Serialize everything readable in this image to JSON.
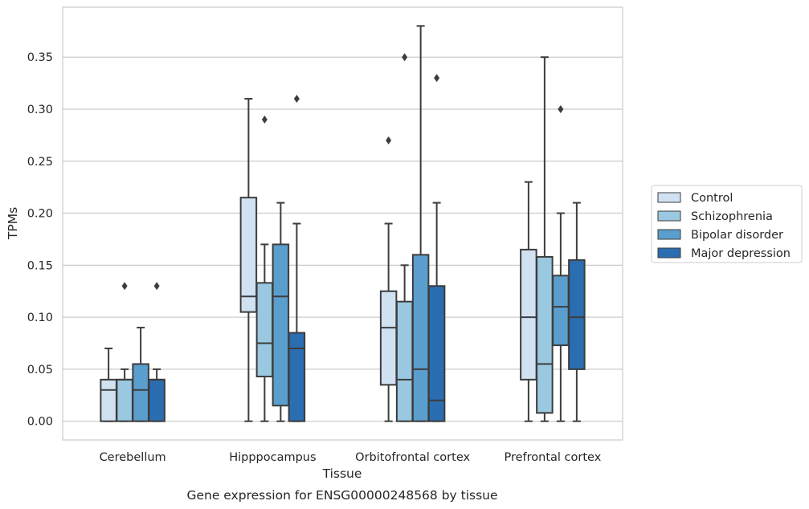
{
  "chart_data": {
    "type": "boxplot",
    "xlabel": "Tissue",
    "ylabel": "TPMs",
    "caption": "Gene expression for ENSG00000248568 by tissue",
    "ylim": [
      -0.018,
      0.398
    ],
    "yticks": [
      "0.00",
      "0.05",
      "0.10",
      "0.15",
      "0.20",
      "0.25",
      "0.30",
      "0.35"
    ],
    "grid": true,
    "legend_position": "right-outside",
    "categories": [
      "Cerebellum",
      "Hipppocampus",
      "Orbitofrontal cortex",
      "Prefrontal cortex"
    ],
    "series": [
      {
        "name": "Control",
        "color": "#d0e1f2",
        "boxes": [
          {
            "whislo": 0.0,
            "q1": 0.0,
            "med": 0.03,
            "q3": 0.04,
            "whishi": 0.07,
            "fliers": []
          },
          {
            "whislo": 0.0,
            "q1": 0.105,
            "med": 0.12,
            "q3": 0.215,
            "whishi": 0.31,
            "fliers": []
          },
          {
            "whislo": 0.0,
            "q1": 0.035,
            "med": 0.09,
            "q3": 0.125,
            "whishi": 0.19,
            "fliers": [
              0.27
            ]
          },
          {
            "whislo": 0.0,
            "q1": 0.04,
            "med": 0.1,
            "q3": 0.165,
            "whishi": 0.23,
            "fliers": []
          }
        ]
      },
      {
        "name": "Schizophrenia",
        "color": "#9ac8e0",
        "boxes": [
          {
            "whislo": 0.0,
            "q1": 0.0,
            "med": 0.04,
            "q3": 0.04,
            "whishi": 0.05,
            "fliers": [
              0.13
            ]
          },
          {
            "whislo": 0.0,
            "q1": 0.043,
            "med": 0.075,
            "q3": 0.133,
            "whishi": 0.17,
            "fliers": [
              0.29
            ]
          },
          {
            "whislo": 0.0,
            "q1": 0.0,
            "med": 0.04,
            "q3": 0.115,
            "whishi": 0.15,
            "fliers": [
              0.35
            ]
          },
          {
            "whislo": 0.0,
            "q1": 0.008,
            "med": 0.055,
            "q3": 0.158,
            "whishi": 0.35,
            "fliers": []
          }
        ]
      },
      {
        "name": "Bipolar disorder",
        "color": "#5a9ecd",
        "boxes": [
          {
            "whislo": 0.0,
            "q1": 0.0,
            "med": 0.03,
            "q3": 0.055,
            "whishi": 0.09,
            "fliers": []
          },
          {
            "whislo": 0.0,
            "q1": 0.015,
            "med": 0.12,
            "q3": 0.17,
            "whishi": 0.21,
            "fliers": []
          },
          {
            "whislo": 0.0,
            "q1": 0.0,
            "med": 0.05,
            "q3": 0.16,
            "whishi": 0.38,
            "fliers": []
          },
          {
            "whislo": 0.0,
            "q1": 0.073,
            "med": 0.11,
            "q3": 0.14,
            "whishi": 0.2,
            "fliers": [
              0.3
            ]
          }
        ]
      },
      {
        "name": "Major depression",
        "color": "#2a6db0",
        "boxes": [
          {
            "whislo": 0.0,
            "q1": 0.0,
            "med": 0.04,
            "q3": 0.04,
            "whishi": 0.05,
            "fliers": [
              0.13
            ]
          },
          {
            "whislo": 0.0,
            "q1": 0.0,
            "med": 0.07,
            "q3": 0.085,
            "whishi": 0.19,
            "fliers": [
              0.31
            ]
          },
          {
            "whislo": 0.0,
            "q1": 0.0,
            "med": 0.02,
            "q3": 0.13,
            "whishi": 0.21,
            "fliers": [
              0.33
            ]
          },
          {
            "whislo": 0.0,
            "q1": 0.05,
            "med": 0.1,
            "q3": 0.155,
            "whishi": 0.21,
            "fliers": []
          }
        ]
      }
    ]
  }
}
